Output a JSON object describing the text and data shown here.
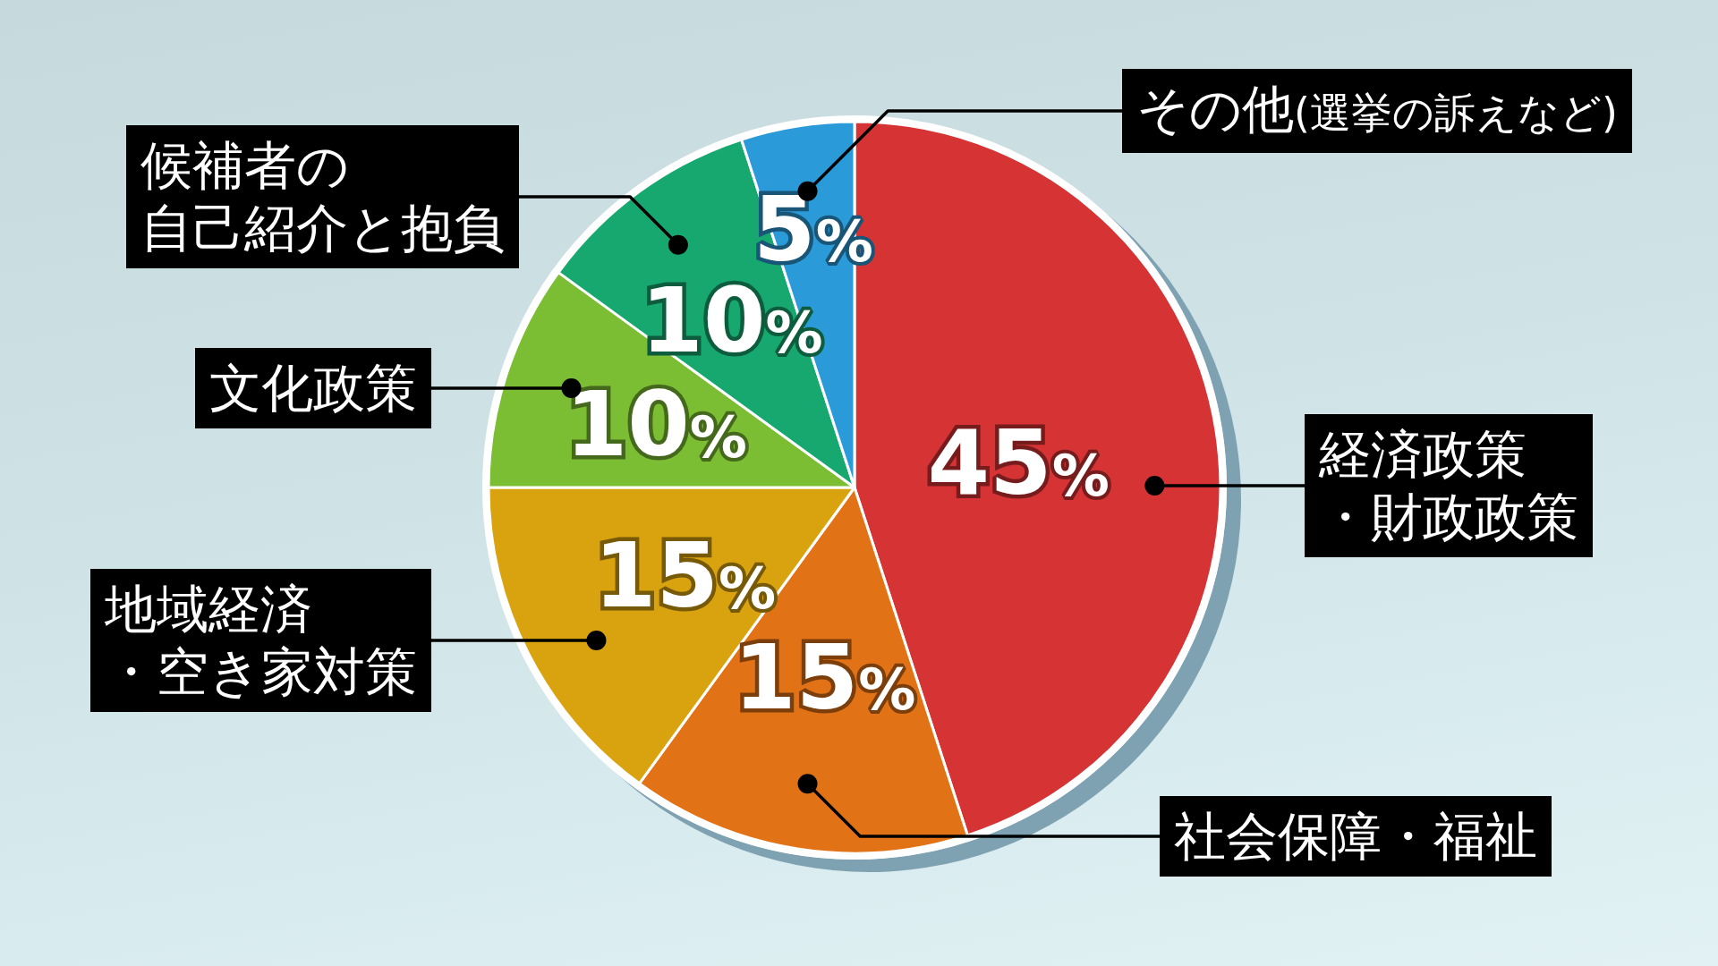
{
  "chart_data": {
    "type": "pie",
    "categories": [
      "経済政策・財政政策",
      "社会保障・福祉",
      "地域経済・空き家対策",
      "文化政策",
      "候補者の自己紹介と抱負",
      "その他(選挙の訴えなど)"
    ],
    "values": [
      45,
      15,
      15,
      10,
      10,
      5
    ],
    "colors": [
      "#d63334",
      "#e27216",
      "#d9a30f",
      "#7bbd33",
      "#17a870",
      "#2b9ad8"
    ],
    "value_labels": [
      "45%",
      "15%",
      "15%",
      "10%",
      "10%",
      "5%"
    ]
  }
}
